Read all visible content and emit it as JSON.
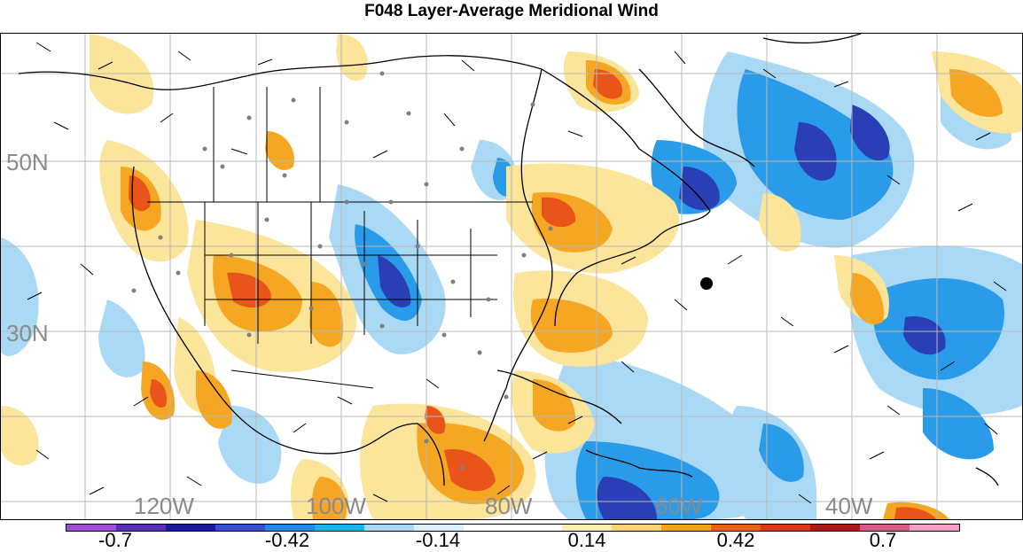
{
  "title": "F048 Layer-Average Meridional Wind",
  "lat_labels": [
    "50N",
    "30N"
  ],
  "lon_labels": [
    "120W",
    "100W",
    "80W",
    "60W",
    "40W"
  ],
  "colorbar": {
    "colors": [
      "#a050d8",
      "#5a2fb5",
      "#1a1a9e",
      "#3a4fd0",
      "#1f88e8",
      "#19b4f0",
      "#a9d8f5",
      "#dceef9",
      "#ffffff",
      "#ffffff",
      "#fbeeb0",
      "#f9d470",
      "#f5a519",
      "#e86214",
      "#d83a1a",
      "#a81c1c",
      "#d85a8a",
      "#f5a0c8"
    ],
    "labels": [
      "-0.7",
      "-0.42",
      "-0.14",
      "0.14",
      "0.42",
      "0.7"
    ]
  },
  "colors": {
    "neg_strong": "#2a3fb5",
    "neg_mid": "#2a9be8",
    "neg_weak": "#aad9f5",
    "pos_weak": "#fbe59a",
    "pos_mid": "#f5a623",
    "pos_strong": "#e8541a",
    "grid": "#b8b8b8",
    "station": "#808080"
  }
}
